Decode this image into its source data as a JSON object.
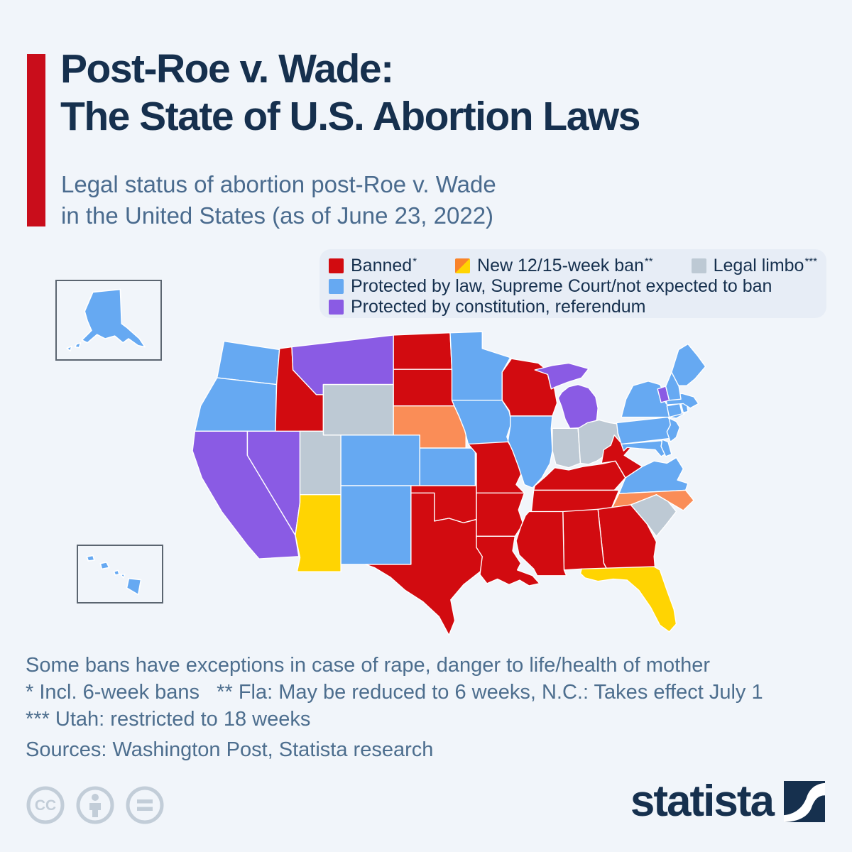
{
  "page": {
    "background": "#f1f5fa",
    "accent_color": "#c90d1b"
  },
  "header": {
    "title_line1": "Post-Roe v. Wade:",
    "title_line2": "The State of U.S. Abortion Laws",
    "subtitle": "Legal status of abortion post-Roe v. Wade\nin the United States (as of June 23, 2022)"
  },
  "legend": {
    "items": [
      {
        "label": "Banned",
        "sup": "*",
        "swatch": "banned"
      },
      {
        "label": "New 12/15-week ban",
        "sup": "**",
        "swatch": "split"
      },
      {
        "label": "Legal limbo",
        "sup": "***",
        "swatch": "limbo"
      },
      {
        "label": "Protected by law, Supreme Court/not expected to ban",
        "sup": "",
        "swatch": "law"
      },
      {
        "label": "Protected by constitution, referendum",
        "sup": "",
        "swatch": "constitution"
      }
    ]
  },
  "chart_data": {
    "type": "choropleth_map",
    "title": "Post-Roe v. Wade: The State of U.S. Abortion Laws",
    "subtitle": "Legal status of abortion post-Roe v. Wade in the United States (as of June 23, 2022)",
    "status_colors": {
      "banned": "#d20b10",
      "ban_12wk": "#fa8d57",
      "ban_15wk": "#ffd402",
      "limbo": "#bdc9d4",
      "law": "#66a9f2",
      "constitution": "#8a5be4"
    },
    "legend_split_colors": [
      "#f9832a",
      "#ffd402"
    ],
    "map_stroke": "#ffffff",
    "states": [
      {
        "id": "WA",
        "name": "Washington",
        "status": "law",
        "polygons": [
          "110,45 205,60 200,122 98,110 104,78"
        ]
      },
      {
        "id": "OR",
        "name": "Oregon",
        "status": "law",
        "polygons": [
          "98,110 200,122 198,205 60,205 70,160"
        ]
      },
      {
        "id": "CA",
        "name": "California",
        "status": "constitution",
        "polygons": [
          "60,205 150,205 150,248 232,390 238,428 170,432 150,408 106,348 72,288 56,240"
        ]
      },
      {
        "id": "NV",
        "name": "Nevada",
        "status": "constitution",
        "polygons": [
          "150,205 240,205 240,332 232,390 150,248"
        ]
      },
      {
        "id": "ID",
        "name": "Idaho",
        "status": "banned",
        "polygons": [
          "205,58 226,55 228,96 268,140 280,140 280,205 198,205 200,122"
        ]
      },
      {
        "id": "MT",
        "name": "Montana",
        "status": "constitution",
        "polygons": [
          "226,55 400,34 400,122 280,122 280,140 268,140 228,96"
        ]
      },
      {
        "id": "WY",
        "name": "Wyoming",
        "status": "limbo",
        "polygons": [
          "280,122 400,122 400,212 280,212"
        ]
      },
      {
        "id": "UT",
        "name": "Utah",
        "status": "limbo",
        "polygons": [
          "240,205 280,205 280,212 310,212 310,318 240,318"
        ]
      },
      {
        "id": "CO",
        "name": "Colorado",
        "status": "law",
        "polygons": [
          "310,212 445,212 445,302 310,302"
        ]
      },
      {
        "id": "AZ",
        "name": "Arizona",
        "status": "ban_15wk",
        "polygons": [
          "240,318 310,318 310,455 235,455 240,430 232,390 240,332"
        ]
      },
      {
        "id": "NM",
        "name": "New Mexico",
        "status": "law",
        "polygons": [
          "310,302 430,302 430,442 310,442"
        ]
      },
      {
        "id": "ND",
        "name": "North Dakota",
        "status": "banned",
        "polygons": [
          "400,34 497,30 500,95 400,95"
        ]
      },
      {
        "id": "SD",
        "name": "South Dakota",
        "status": "banned",
        "polygons": [
          "400,95 500,95 504,160 400,160"
        ]
      },
      {
        "id": "NE",
        "name": "Nebraska",
        "status": "ban_12wk",
        "polygons": [
          "400,160 504,160 514,178 524,204 524,235 445,235 445,212 400,212"
        ]
      },
      {
        "id": "KS",
        "name": "Kansas",
        "status": "law",
        "polygons": [
          "445,235 540,235 540,302 445,302"
        ]
      },
      {
        "id": "OK",
        "name": "Oklahoma",
        "status": "banned",
        "polygons": [
          "430,302 542,302 542,362 520,368 495,360 470,365 470,315 430,315"
        ]
      },
      {
        "id": "TX",
        "name": "Texas",
        "status": "banned",
        "polygons": [
          "430,315 470,315 470,365 495,360 520,368 542,362 542,395 558,428 552,452 520,478 498,505 505,542 495,568 478,535 450,508 420,488 395,465 368,448 352,442 430,442"
        ]
      },
      {
        "id": "MN",
        "name": "Minnesota",
        "status": "law",
        "polygons": [
          "497,30 552,28 552,58 600,74 586,100 586,150 500,150 500,95"
        ]
      },
      {
        "id": "IA",
        "name": "Iowa",
        "status": "law",
        "polygons": [
          "500,150 586,150 598,170 602,190 594,215 598,226 528,228 522,204 512,178 504,160"
        ]
      },
      {
        "id": "MO",
        "name": "Missouri",
        "status": "banned",
        "polygons": [
          "528,228 596,224 612,250 620,278 610,300 624,315 542,315 542,245"
        ]
      },
      {
        "id": "AR",
        "name": "Arkansas",
        "status": "banned",
        "polygons": [
          "542,315 624,315 614,345 622,370 608,392 542,392"
        ]
      },
      {
        "id": "LA",
        "name": "Louisiana",
        "status": "banned",
        "polygons": [
          "542,392 608,392 604,418 618,440 612,452 638,462 650,476 632,480 616,470 598,478 578,468 560,476 548,460 552,428 542,412"
        ]
      },
      {
        "id": "WI",
        "name": "Wisconsin",
        "status": "banned",
        "polygons": [
          "602,76 648,84 670,102 676,132 680,155 672,178 600,178 598,168 586,150 586,100"
        ]
      },
      {
        "id": "IL",
        "name": "Illinois",
        "status": "law",
        "polygons": [
          "600,178 672,178 670,200 672,240 668,262 654,288 638,306 624,300 614,268 604,240 596,222 600,196"
        ]
      },
      {
        "id": "MI",
        "name": "Michigan",
        "status": "constitution",
        "polygons": [
          "642,96 672,88 700,84 734,94 722,110 698,118 678,126 670,130 664,104",
          "688,136 700,126 716,122 734,128 746,144 750,164 748,184 740,198 702,200 694,184 688,162 682,146"
        ]
      },
      {
        "id": "IN",
        "name": "Indiana",
        "status": "limbo",
        "polygons": [
          "672,200 716,200 720,262 700,270 678,264 672,240"
        ]
      },
      {
        "id": "OH",
        "name": "Ohio",
        "status": "limbo",
        "polygons": [
          "716,200 732,190 752,185 770,190 783,192 784,210 790,226 778,236 768,244 748,258 734,264 720,262"
        ]
      },
      {
        "id": "KY",
        "name": "Kentucky",
        "status": "banned",
        "polygons": [
          "642,302 660,286 676,270 700,274 724,268 758,263 780,258 797,288 778,310 640,310"
        ]
      },
      {
        "id": "TN",
        "name": "Tennessee",
        "status": "banned",
        "polygons": [
          "640,310 786,310 770,350 636,348"
        ]
      },
      {
        "id": "WV",
        "name": "West Virginia",
        "status": "banned",
        "polygons": [
          "756,262 760,238 772,230 778,212 788,224 804,216 810,230 795,248 826,268 797,288 780,258"
        ]
      },
      {
        "id": "VA",
        "name": "Virginia",
        "status": "law",
        "polygons": [
          "797,288 826,268 846,258 868,262 884,252 896,272 886,292 904,298 900,310 786,316"
        ]
      },
      {
        "id": "NC",
        "name": "North Carolina",
        "status": "ban_12wk",
        "polygons": [
          "786,316 900,310 914,328 896,346 850,318 806,336 770,350"
        ]
      },
      {
        "id": "SC",
        "name": "South Carolina",
        "status": "limbo",
        "polygons": [
          "806,336 850,318 870,330 884,348 866,372 850,392 834,370"
        ]
      },
      {
        "id": "GA",
        "name": "Georgia",
        "status": "banned",
        "polygons": [
          "750,344 806,336 834,370 850,402 846,428 848,452 766,452 760,440"
        ]
      },
      {
        "id": "AL",
        "name": "Alabama",
        "status": "banned",
        "polygons": [
          "690,348 750,344 760,440 766,452 744,450 746,462 724,460 722,450 692,452"
        ]
      },
      {
        "id": "MS",
        "name": "Mississippi",
        "status": "banned",
        "polygons": [
          "632,348 690,348 692,452 696,462 646,462 640,450 615,425 610,400 618,375 626,355"
        ]
      },
      {
        "id": "FL",
        "name": "Florida",
        "status": "ban_15wk",
        "polygons": [
          "722,450 846,446 856,452 868,488 880,522 884,548 872,562 856,550 840,518 820,488 800,470 776,468 750,472 728,466 720,458"
        ]
      },
      {
        "id": "PA",
        "name": "Pennsylvania",
        "status": "law",
        "polygons": [
          "782,190 870,180 880,198 872,218 790,228 784,208"
        ]
      },
      {
        "id": "NY",
        "name": "New York",
        "status": "law",
        "polygons": [
          "790,180 798,148 810,124 836,116 856,122 864,138 866,155 880,166 898,174 884,182 872,180"
        ]
      },
      {
        "id": "NJ",
        "name": "New Jersey",
        "status": "law",
        "polygons": [
          "872,182 884,188 890,198 884,216 874,224 868,206 874,194"
        ]
      },
      {
        "id": "MD",
        "name": "Maryland",
        "status": "law",
        "polygons": [
          "790,228 858,222 864,228 868,244 858,250 848,238 820,236 800,234 794,240"
        ]
      },
      {
        "id": "DE",
        "name": "Delaware",
        "status": "law",
        "polygons": [
          "860,220 870,224 876,246 866,250 858,232"
        ]
      },
      {
        "id": "CT",
        "name": "Connecticut",
        "status": "law",
        "polygons": [
          "868,160 890,156 894,174 872,180"
        ]
      },
      {
        "id": "RI",
        "name": "Rhode Island",
        "status": "law",
        "polygons": [
          "892,156 902,154 904,170 896,172"
        ]
      },
      {
        "id": "MA",
        "name": "Massachusetts",
        "status": "law",
        "polygons": [
          "866,144 894,138 914,144 922,156 908,164 896,156 868,158"
        ]
      },
      {
        "id": "VT",
        "name": "Vermont",
        "status": "constitution",
        "polygons": [
          "852,130 866,125 872,150 858,154"
        ]
      },
      {
        "id": "NH",
        "name": "New Hampshire",
        "status": "law",
        "polygons": [
          "866,125 876,100 888,122 892,148 872,150"
        ]
      },
      {
        "id": "ME",
        "name": "Maine",
        "status": "law",
        "polygons": [
          "876,100 888,60 904,50 920,70 934,90 916,112 902,124 888,124"
        ]
      }
    ],
    "insets": {
      "alaska": {
        "id": "AK",
        "name": "Alaska",
        "status": "law",
        "polygons": [
          "52,16 92,12 94,62 102,68 120,84 128,96 118,94 104,84 96,90 84,80 70,84 58,78 44,90 36,86 50,72 44,58 40,44 46,30",
          "28,92 34,90 32,97 26,96",
          "14,98 21,95 19,102"
        ]
      },
      "hawaii": {
        "id": "HI",
        "name": "Hawaii",
        "status": "law",
        "polygons": [
          "12,16 21,14 23,21 14,22",
          "32,26 41,24 45,32 34,34",
          "52,38 58,36 60,42 54,43",
          "62,42 68,42 66,47",
          "74,48 92,50 88,72 71,62"
        ]
      }
    }
  },
  "footnotes": {
    "text": "Some bans have exceptions in case of rape, danger to life/health of mother\n* Incl. 6-week bans   ** Fla: May be reduced to 6 weeks, N.C.: Takes effect July 1\n*** Utah: restricted to 18 weeks",
    "sources": "Sources: Washington Post, Statista research"
  },
  "footer": {
    "license_icons": [
      "creative-commons",
      "attribution",
      "no-derivatives"
    ],
    "brand": "statista",
    "brand_color": "#16304e"
  }
}
